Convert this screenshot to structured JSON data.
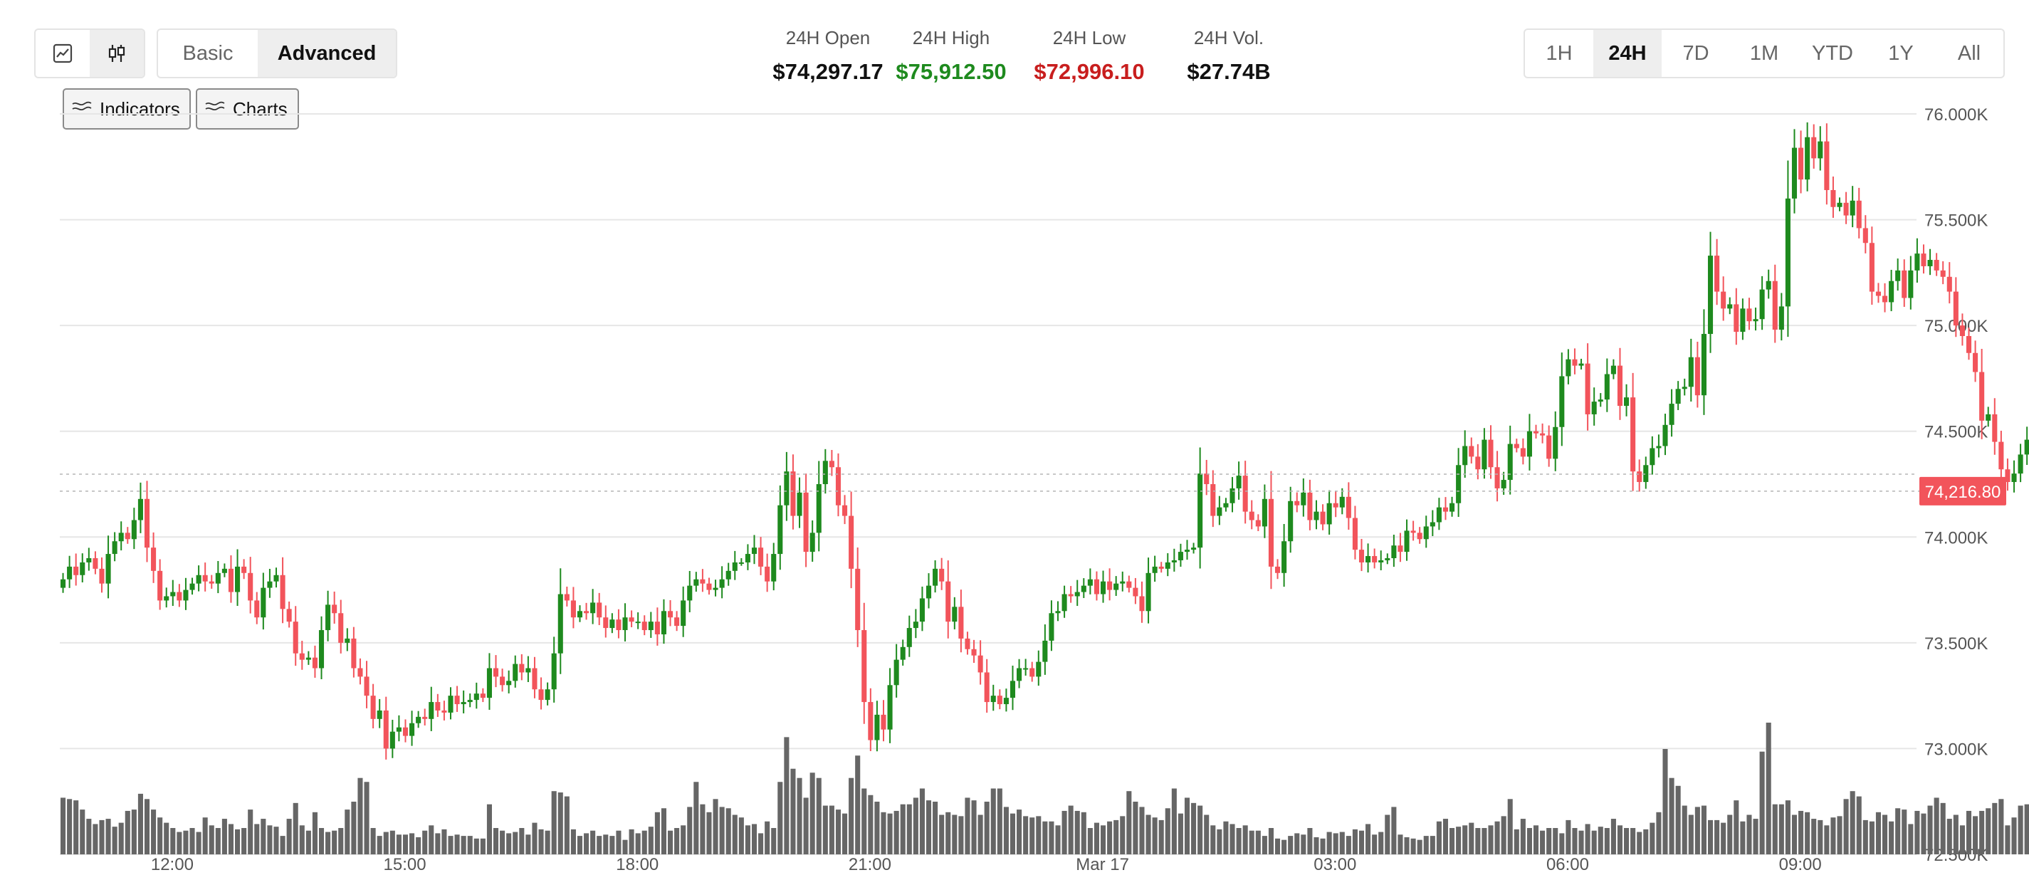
{
  "controls": {
    "chart_style_icons": [
      "line-chart-icon",
      "candlestick-icon"
    ],
    "mode_options": [
      "Basic",
      "Advanced"
    ],
    "active_mode": "Advanced",
    "indicators_label": "Indicators",
    "charts_label": "Charts"
  },
  "stats": {
    "open_label": "24H Open",
    "open_value": "$74,297.17",
    "high_label": "24H High",
    "high_value": "$75,912.50",
    "low_label": "24H Low",
    "low_value": "$72,996.10",
    "vol_label": "24H Vol.",
    "vol_value": "$27.74B"
  },
  "ranges": {
    "labels": [
      "1H",
      "24H",
      "7D",
      "1M",
      "YTD",
      "1Y",
      "All"
    ],
    "active": "24H"
  },
  "colors": {
    "up": "#1e8a1e",
    "down": "#f2545b",
    "high_text": "#1e8a1e",
    "low_text": "#c81e1e",
    "volume": "#666666",
    "price_tag": "#f2545b"
  },
  "chart_data": {
    "type": "candlestick",
    "y_ticks": [
      "76.000K",
      "75.500K",
      "75.000K",
      "74.500K",
      "74.000K",
      "73.500K",
      "73.000K",
      "72.500K"
    ],
    "y_tick_values": [
      76000,
      75500,
      75000,
      74500,
      74000,
      73500,
      73000,
      72500
    ],
    "ylim": [
      72500,
      76000
    ],
    "x_ticks": [
      "12:00",
      "15:00",
      "18:00",
      "21:00",
      "Mar 17",
      "03:00",
      "06:00",
      "09:00"
    ],
    "x_tick_hours": [
      12,
      15,
      18,
      21,
      24,
      27,
      30,
      33
    ],
    "x_range_hours": [
      10.55,
      34.5
    ],
    "last_price": 74216.8,
    "last_price_label": "74,216.80",
    "open_reference": 74297.17,
    "candle_interval_minutes": 5,
    "grid": true,
    "close": [
      73800,
      73860,
      73820,
      73880,
      73900,
      73850,
      73780,
      73920,
      73980,
      74020,
      73990,
      74080,
      74180,
      73950,
      73840,
      73700,
      73720,
      73740,
      73700,
      73750,
      73780,
      73820,
      73790,
      73780,
      73830,
      73850,
      73740,
      73860,
      73830,
      73700,
      73620,
      73760,
      73790,
      73820,
      73660,
      73600,
      73450,
      73420,
      73430,
      73380,
      73560,
      73680,
      73640,
      73500,
      73520,
      73380,
      73340,
      73250,
      73140,
      73180,
      73000,
      73080,
      73100,
      73060,
      73120,
      73150,
      73140,
      73220,
      73180,
      73170,
      73250,
      73210,
      73220,
      73230,
      73260,
      73240,
      73380,
      73340,
      73300,
      73320,
      73400,
      73360,
      73380,
      73280,
      73230,
      73280,
      73450,
      73730,
      73700,
      73620,
      73650,
      73640,
      73690,
      73620,
      73570,
      73610,
      73560,
      73620,
      73600,
      73600,
      73560,
      73600,
      73540,
      73650,
      73620,
      73580,
      73700,
      73770,
      73800,
      73780,
      73750,
      73760,
      73800,
      73840,
      73880,
      73880,
      73920,
      73950,
      73860,
      73790,
      73920,
      74150,
      74310,
      74100,
      74210,
      73930,
      74020,
      74250,
      74360,
      74330,
      74150,
      74100,
      73850,
      73560,
      73220,
      73040,
      73160,
      73090,
      73300,
      73420,
      73480,
      73570,
      73600,
      73710,
      73770,
      73850,
      73790,
      73600,
      73670,
      73520,
      73470,
      73440,
      73360,
      73220,
      73250,
      73210,
      73240,
      73320,
      73380,
      73380,
      73340,
      73410,
      73510,
      73640,
      73650,
      73730,
      73720,
      73740,
      73770,
      73800,
      73730,
      73790,
      73750,
      73780,
      73790,
      73760,
      73720,
      73650,
      73830,
      73860,
      73850,
      73880,
      73890,
      73930,
      73940,
      73950,
      74300,
      74250,
      74100,
      74140,
      74160,
      74230,
      74290,
      74120,
      74080,
      74050,
      74180,
      73860,
      73830,
      73980,
      74170,
      74150,
      74210,
      74080,
      74120,
      74060,
      74160,
      74140,
      74190,
      74090,
      73940,
      73880,
      73910,
      73880,
      73890,
      73900,
      73960,
      73930,
      74030,
      74020,
      73990,
      74050,
      74070,
      74140,
      74120,
      74160,
      74340,
      74430,
      74380,
      74320,
      74460,
      74330,
      74230,
      74270,
      74440,
      74420,
      74380,
      74500,
      74490,
      74480,
      74370,
      74520,
      74760,
      74840,
      74810,
      74820,
      74580,
      74640,
      74650,
      74770,
      74810,
      74620,
      74660,
      74310,
      74260,
      74340,
      74420,
      74430,
      74530,
      74630,
      74700,
      74710,
      74850,
      74670,
      74960,
      75330,
      75160,
      75080,
      75100,
      74970,
      75080,
      75020,
      75030,
      75170,
      75210,
      74980,
      75090,
      75600,
      75840,
      75690,
      75890,
      75790,
      75870,
      75640,
      75560,
      75580,
      75520,
      75590,
      75460,
      75390,
      75160,
      75140,
      75110,
      75210,
      75260,
      75130,
      75260,
      75340,
      75280,
      75310,
      75260,
      75230,
      75160,
      75000,
      74950,
      74870,
      74780,
      74550,
      74580,
      74450,
      74320,
      74260,
      74300,
      74390,
      74460,
      74590,
      74600,
      74440,
      74400,
      74300,
      74070,
      74030,
      74160,
      74230,
      74220
    ],
    "volume_relative": [
      0.43,
      0.42,
      0.41,
      0.34,
      0.27,
      0.23,
      0.26,
      0.27,
      0.21,
      0.24,
      0.33,
      0.34,
      0.46,
      0.42,
      0.34,
      0.28,
      0.24,
      0.2,
      0.17,
      0.18,
      0.2,
      0.17,
      0.28,
      0.22,
      0.2,
      0.27,
      0.23,
      0.19,
      0.2,
      0.34,
      0.23,
      0.27,
      0.22,
      0.21,
      0.14,
      0.27,
      0.39,
      0.22,
      0.18,
      0.32,
      0.2,
      0.17,
      0.18,
      0.2,
      0.34,
      0.4,
      0.58,
      0.55,
      0.2,
      0.14,
      0.17,
      0.18,
      0.15,
      0.15,
      0.16,
      0.13,
      0.18,
      0.22,
      0.16,
      0.19,
      0.14,
      0.15,
      0.14,
      0.14,
      0.12,
      0.12,
      0.38,
      0.2,
      0.18,
      0.16,
      0.17,
      0.2,
      0.15,
      0.24,
      0.19,
      0.18,
      0.48,
      0.47,
      0.44,
      0.19,
      0.14,
      0.16,
      0.18,
      0.14,
      0.15,
      0.14,
      0.18,
      0.11,
      0.19,
      0.16,
      0.18,
      0.21,
      0.32,
      0.35,
      0.18,
      0.2,
      0.22,
      0.36,
      0.55,
      0.38,
      0.32,
      0.42,
      0.36,
      0.35,
      0.3,
      0.28,
      0.22,
      0.23,
      0.16,
      0.25,
      0.2,
      0.55,
      0.89,
      0.65,
      0.58,
      0.43,
      0.62,
      0.58,
      0.37,
      0.37,
      0.34,
      0.31,
      0.58,
      0.75,
      0.5,
      0.45,
      0.4,
      0.32,
      0.31,
      0.33,
      0.38,
      0.38,
      0.43,
      0.5,
      0.41,
      0.4,
      0.3,
      0.32,
      0.3,
      0.29,
      0.43,
      0.41,
      0.3,
      0.4,
      0.5,
      0.5,
      0.36,
      0.31,
      0.34,
      0.29,
      0.28,
      0.29,
      0.25,
      0.25,
      0.22,
      0.33,
      0.37,
      0.33,
      0.32,
      0.2,
      0.24,
      0.22,
      0.25,
      0.26,
      0.29,
      0.48,
      0.4,
      0.36,
      0.3,
      0.28,
      0.26,
      0.35,
      0.5,
      0.31,
      0.43,
      0.39,
      0.37,
      0.3,
      0.22,
      0.19,
      0.25,
      0.23,
      0.2,
      0.22,
      0.18,
      0.18,
      0.14,
      0.2,
      0.12,
      0.11,
      0.14,
      0.16,
      0.15,
      0.2,
      0.13,
      0.12,
      0.17,
      0.16,
      0.17,
      0.14,
      0.19,
      0.18,
      0.23,
      0.15,
      0.17,
      0.3,
      0.36,
      0.15,
      0.13,
      0.12,
      0.11,
      0.14,
      0.14,
      0.25,
      0.27,
      0.2,
      0.21,
      0.22,
      0.24,
      0.2,
      0.2,
      0.22,
      0.25,
      0.29,
      0.42,
      0.19,
      0.27,
      0.2,
      0.22,
      0.18,
      0.2,
      0.2,
      0.16,
      0.26,
      0.2,
      0.18,
      0.23,
      0.18,
      0.21,
      0.2,
      0.27,
      0.22,
      0.2,
      0.2,
      0.17,
      0.19,
      0.24,
      0.32,
      0.8,
      0.58,
      0.52,
      0.37,
      0.3,
      0.36,
      0.37,
      0.26,
      0.26,
      0.24,
      0.3,
      0.41,
      0.25,
      0.3,
      0.27,
      0.78,
      1.0,
      0.38,
      0.38,
      0.41,
      0.3,
      0.33,
      0.32,
      0.27,
      0.26,
      0.22,
      0.28,
      0.29,
      0.42,
      0.48,
      0.44,
      0.26,
      0.25,
      0.32,
      0.3,
      0.25,
      0.35,
      0.34,
      0.23,
      0.33,
      0.31,
      0.37,
      0.43,
      0.39,
      0.27,
      0.3,
      0.22,
      0.33,
      0.29,
      0.33,
      0.35,
      0.39,
      0.42,
      0.22,
      0.28,
      0.37,
      0.38,
      0.45,
      0.39,
      0.35,
      0.25,
      0.22,
      0.38,
      0.29,
      0.22,
      0.22,
      0.22,
      0.25
    ]
  }
}
